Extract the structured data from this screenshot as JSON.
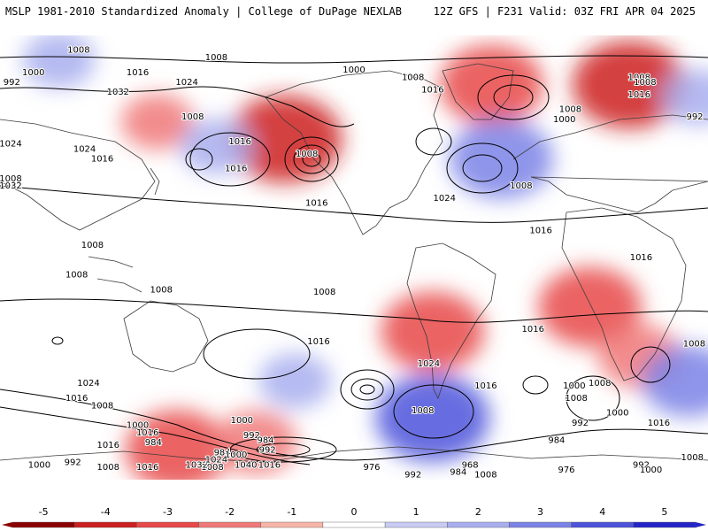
{
  "header": {
    "left": "MSLP 1981-2010 Standardized Anomaly | College of DuPage NEXLAB",
    "right": "12Z GFS | F231 Valid: 03Z FRI APR 04 2025"
  },
  "colors": {
    "neg5": "#8b0000",
    "neg4": "#cc2020",
    "neg3": "#e84848",
    "neg2": "#f07878",
    "neg1": "#f8b4a8",
    "zero": "#ffffff",
    "pos1": "#c8ccf4",
    "pos2": "#a8aeee",
    "pos3": "#7b82e6",
    "pos4": "#4d53da",
    "pos5": "#2424c8",
    "land": "#404040",
    "contour": "#000000"
  },
  "colorbar": {
    "ticks": [
      "-5",
      "-4",
      "-3",
      "-2",
      "-1",
      "0",
      "1",
      "2",
      "3",
      "4",
      "5"
    ],
    "tick_values": [
      -5,
      -4,
      -3,
      -2,
      -1,
      0,
      1,
      2,
      3,
      4,
      5
    ],
    "range": [
      -5.5,
      5.5
    ]
  },
  "map": {
    "anomalies": [
      {
        "lon": -135,
        "lat": 48,
        "value": -3.5
      },
      {
        "lon": -30,
        "lat": 70,
        "value": -3
      },
      {
        "lon": 40,
        "lat": 70,
        "value": -3.5
      },
      {
        "lon": 160,
        "lat": 55,
        "value": -1.5
      },
      {
        "lon": -25,
        "lat": 40,
        "value": 3
      },
      {
        "lon": 75,
        "lat": 65,
        "value": 1.5
      },
      {
        "lon": 110,
        "lat": 80,
        "value": 1.5
      },
      {
        "lon": -170,
        "lat": 45,
        "value": 1.5
      },
      {
        "lon": -60,
        "lat": -30,
        "value": -3
      },
      {
        "lon": 20,
        "lat": -20,
        "value": -3
      },
      {
        "lon": 45,
        "lat": -40,
        "value": -2
      },
      {
        "lon": -60,
        "lat": -65,
        "value": 3.5
      },
      {
        "lon": 70,
        "lat": -50,
        "value": 2.5
      },
      {
        "lon": -130,
        "lat": -50,
        "value": 1.5
      },
      {
        "lon": 170,
        "lat": -78,
        "value": -3
      },
      {
        "lon": -150,
        "lat": -75,
        "value": -2
      }
    ],
    "isobar_labels": [
      {
        "text": "1008",
        "lon": -170,
        "lat": 81
      },
      {
        "text": "1000",
        "lon": -100,
        "lat": 76
      },
      {
        "text": "1008",
        "lon": -70,
        "lat": 73
      },
      {
        "text": "1016",
        "lon": -60,
        "lat": 68
      },
      {
        "text": "1008",
        "lon": 120,
        "lat": 84
      },
      {
        "text": "1008",
        "lon": 45,
        "lat": 73
      },
      {
        "text": "992",
        "lon": 86,
        "lat": 71
      },
      {
        "text": "1000",
        "lon": 97,
        "lat": 75
      },
      {
        "text": "1016",
        "lon": 150,
        "lat": 75
      },
      {
        "text": "1024",
        "lon": 175,
        "lat": 71
      },
      {
        "text": "1032",
        "lon": 140,
        "lat": 67
      },
      {
        "text": "992",
        "lon": 79,
        "lat": 57
      },
      {
        "text": "1008",
        "lon": 48,
        "lat": 71
      },
      {
        "text": "1016",
        "lon": 45,
        "lat": 66
      },
      {
        "text": "1008",
        "lon": 10,
        "lat": 60
      },
      {
        "text": "1000",
        "lon": 7,
        "lat": 56
      },
      {
        "text": "1024",
        "lon": 83,
        "lat": 46
      },
      {
        "text": "1032",
        "lon": 81,
        "lat": 29
      },
      {
        "text": "1024",
        "lon": 123,
        "lat": 44
      },
      {
        "text": "1016",
        "lon": 132,
        "lat": 40
      },
      {
        "text": "1008",
        "lon": 178,
        "lat": 57
      },
      {
        "text": "1016",
        "lon": -158,
        "lat": 47
      },
      {
        "text": "1008",
        "lon": -124,
        "lat": 42
      },
      {
        "text": "1016",
        "lon": -160,
        "lat": 36
      },
      {
        "text": "1016",
        "lon": -119,
        "lat": 22
      },
      {
        "text": "1024",
        "lon": -54,
        "lat": 24
      },
      {
        "text": "1016",
        "lon": -5,
        "lat": 11
      },
      {
        "text": "1008",
        "lon": 83,
        "lat": 32
      },
      {
        "text": "1008",
        "lon": -15,
        "lat": 29
      },
      {
        "text": "1016",
        "lon": 46,
        "lat": 0
      },
      {
        "text": "1008",
        "lon": 127,
        "lat": 5
      },
      {
        "text": "1008",
        "lon": 119,
        "lat": -7
      },
      {
        "text": "1008",
        "lon": 162,
        "lat": -13
      },
      {
        "text": "1008",
        "lon": 73,
        "lat": -35
      },
      {
        "text": "1008",
        "lon": -115,
        "lat": -14
      },
      {
        "text": "1016",
        "lon": -118,
        "lat": -34
      },
      {
        "text": "1016",
        "lon": -9,
        "lat": -29
      },
      {
        "text": "1024",
        "lon": -62,
        "lat": -43
      },
      {
        "text": "1016",
        "lon": -33,
        "lat": -52
      },
      {
        "text": "1000",
        "lon": 34,
        "lat": -63
      },
      {
        "text": "1000",
        "lon": 12,
        "lat": -52
      },
      {
        "text": "1008",
        "lon": 13,
        "lat": -57
      },
      {
        "text": "1008",
        "lon": -65,
        "lat": -62
      },
      {
        "text": "992",
        "lon": 15,
        "lat": -67
      },
      {
        "text": "984",
        "lon": 3,
        "lat": -74
      },
      {
        "text": "1000",
        "lon": -157,
        "lat": -66
      },
      {
        "text": "992",
        "lon": -152,
        "lat": -72
      },
      {
        "text": "984",
        "lon": -145,
        "lat": -74
      },
      {
        "text": "984",
        "lon": -167,
        "lat": -79
      },
      {
        "text": "992",
        "lon": -144,
        "lat": -78
      },
      {
        "text": "1000",
        "lon": -160,
        "lat": -80
      },
      {
        "text": "1016",
        "lon": -143,
        "lat": -84
      },
      {
        "text": "1008",
        "lon": -172,
        "lat": -85
      },
      {
        "text": "976",
        "lon": -91,
        "lat": -85
      },
      {
        "text": "992",
        "lon": -70,
        "lat": -88
      },
      {
        "text": "1008",
        "lon": -33,
        "lat": -88
      },
      {
        "text": "984",
        "lon": -47,
        "lat": -87
      },
      {
        "text": "968",
        "lon": -41,
        "lat": -84
      },
      {
        "text": "976",
        "lon": 8,
        "lat": -86
      },
      {
        "text": "992",
        "lon": 46,
        "lat": -84
      },
      {
        "text": "1000",
        "lon": 51,
        "lat": -86
      },
      {
        "text": "1008",
        "lon": 72,
        "lat": -81
      },
      {
        "text": "1016",
        "lon": 155,
        "lat": -71
      },
      {
        "text": "1000",
        "lon": 100,
        "lat": -84
      },
      {
        "text": "992",
        "lon": 117,
        "lat": -83
      },
      {
        "text": "1008",
        "lon": 135,
        "lat": -85
      },
      {
        "text": "1016",
        "lon": 155,
        "lat": -85
      },
      {
        "text": "1032",
        "lon": 180,
        "lat": -84
      },
      {
        "text": "1024",
        "lon": -170,
        "lat": -82
      },
      {
        "text": "1040",
        "lon": -155,
        "lat": -84
      },
      {
        "text": "1016",
        "lon": 135,
        "lat": -76
      },
      {
        "text": "984",
        "lon": 158,
        "lat": -75
      },
      {
        "text": "1000",
        "lon": 150,
        "lat": -68
      },
      {
        "text": "1016",
        "lon": 119,
        "lat": -57
      },
      {
        "text": "1024",
        "lon": 125,
        "lat": -51
      },
      {
        "text": "1008",
        "lon": 132,
        "lat": -60
      },
      {
        "text": "1008",
        "lon": 25,
        "lat": -51
      },
      {
        "text": "1016",
        "lon": 55,
        "lat": -67
      }
    ]
  }
}
